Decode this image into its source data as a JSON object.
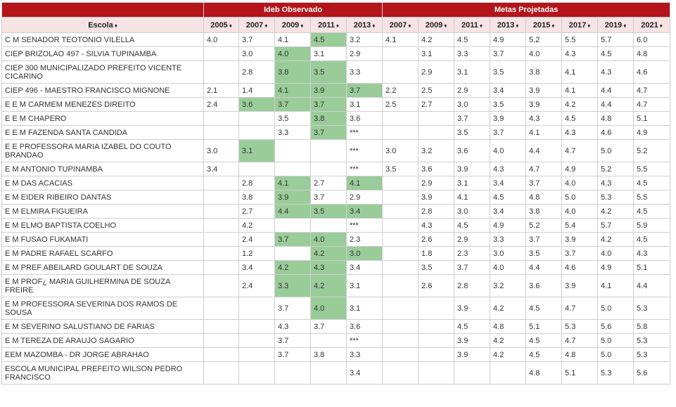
{
  "groups": {
    "blank": "",
    "observed": "Ideb Observado",
    "projected": "Metas Projetadas"
  },
  "columns": {
    "school": "Escola",
    "sort_icon": "♦",
    "observed_years": [
      "2005",
      "2007",
      "2009",
      "2011",
      "2013"
    ],
    "projected_years": [
      "2007",
      "2009",
      "2011",
      "2013",
      "2015",
      "2017",
      "2019",
      "2021"
    ]
  },
  "highlight_color": "#99cc99",
  "rows": [
    {
      "name": "C M SENADOR TEOTONIO VILELLA",
      "obs": [
        "4.0",
        "3.7",
        "4.1",
        "4.5",
        "3.2"
      ],
      "proj": [
        "4.1",
        "4.2",
        "4.5",
        "4.9",
        "5.2",
        "5.5",
        "5.7",
        "6.0"
      ],
      "hl": [
        3
      ]
    },
    {
      "name": "CIEP BRIZOLAO 497 - SILVIA TUPINAMBA",
      "obs": [
        "",
        "3.0",
        "4.0",
        "3.1",
        "2.9"
      ],
      "proj": [
        "",
        "3.1",
        "3.3",
        "3.7",
        "4.0",
        "4.3",
        "4.5",
        "4.8"
      ],
      "hl": [
        2
      ]
    },
    {
      "name": "CIEP 300 MUNICIPALIZADO PREFEITO VICENTE CICARINO",
      "obs": [
        "",
        "2.8",
        "3.8",
        "3.5",
        "3.3"
      ],
      "proj": [
        "",
        "2.9",
        "3.1",
        "3.5",
        "3.8",
        "4.1",
        "4.3",
        "4.6"
      ],
      "hl": [
        2,
        3
      ],
      "tall": true
    },
    {
      "name": "CIEP 496 - MAESTRO FRANCISCO MIGNONE",
      "obs": [
        "2.1",
        "1.4",
        "4.1",
        "3.9",
        "3.7"
      ],
      "proj": [
        "2.2",
        "2.5",
        "2.9",
        "3.4",
        "3.9",
        "4.1",
        "4.4",
        "4.7"
      ],
      "hl": [
        2,
        3,
        4
      ]
    },
    {
      "name": "E E M CARMEM MENEZES DIREITO",
      "obs": [
        "2.4",
        "3.6",
        "3.7",
        "3.7",
        "3.1"
      ],
      "proj": [
        "2.5",
        "2.7",
        "3.0",
        "3.5",
        "3.9",
        "4.2",
        "4.4",
        "4.7"
      ],
      "hl": [
        1,
        2,
        3
      ]
    },
    {
      "name": "E E M CHAPERO",
      "obs": [
        "",
        "",
        "3.5",
        "3.8",
        "3.6"
      ],
      "proj": [
        "",
        "",
        "3.7",
        "3.9",
        "4.3",
        "4.5",
        "4.8",
        "5.1"
      ],
      "hl": [
        3
      ]
    },
    {
      "name": "E E M FAZENDA SANTA CANDIDA",
      "obs": [
        "",
        "",
        "3.3",
        "3.7",
        "***"
      ],
      "proj": [
        "",
        "",
        "3.5",
        "3.7",
        "4.1",
        "4.3",
        "4.6",
        "4.9"
      ],
      "hl": [
        3
      ]
    },
    {
      "name": "E E PROFESSORA MARIA IZABEL DO COUTO BRANDAO",
      "obs": [
        "3.0",
        "3.1",
        "",
        "",
        "***"
      ],
      "proj": [
        "3.0",
        "3.2",
        "3.6",
        "4.0",
        "4.4",
        "4.7",
        "5.0",
        "5.2"
      ],
      "hl": [
        1
      ],
      "tall": true
    },
    {
      "name": "E M ANTONIO TUPINAMBA",
      "obs": [
        "3.4",
        "",
        "",
        "",
        "***"
      ],
      "proj": [
        "3.5",
        "3.6",
        "3.9",
        "4.3",
        "4.7",
        "4.9",
        "5.2",
        "5.5"
      ],
      "hl": []
    },
    {
      "name": "E M DAS ACACIAS",
      "obs": [
        "",
        "2.8",
        "4.1",
        "2.7",
        "4.1"
      ],
      "proj": [
        "",
        "2.9",
        "3.1",
        "3.4",
        "3.7",
        "4.0",
        "4.3",
        "4.5"
      ],
      "hl": [
        2,
        4
      ]
    },
    {
      "name": "E M EIDER RIBEIRO DANTAS",
      "obs": [
        "",
        "3.8",
        "3.9",
        "3.7",
        "2.9"
      ],
      "proj": [
        "",
        "3.9",
        "4.1",
        "4.5",
        "4.8",
        "5.0",
        "5.3",
        "5.5"
      ],
      "hl": [
        2
      ]
    },
    {
      "name": "E M ELMIRA FIGUEIRA",
      "obs": [
        "",
        "2.7",
        "4.4",
        "3.5",
        "3.4"
      ],
      "proj": [
        "",
        "2.8",
        "3.0",
        "3.4",
        "3.8",
        "4.0",
        "4.2",
        "4.5"
      ],
      "hl": [
        2,
        3,
        4
      ]
    },
    {
      "name": "E M ELMO BAPTISTA COELHO",
      "obs": [
        "",
        "4.2",
        "",
        "",
        "***"
      ],
      "proj": [
        "",
        "4.3",
        "4.5",
        "4.9",
        "5.2",
        "5.4",
        "5.7",
        "5.9"
      ],
      "hl": []
    },
    {
      "name": "E M FUSAO FUKAMATI",
      "obs": [
        "",
        "2.4",
        "3.7",
        "4.0",
        "2.3"
      ],
      "proj": [
        "",
        "2.6",
        "2.9",
        "3.3",
        "3.7",
        "3.9",
        "4.2",
        "4.5"
      ],
      "hl": [
        2,
        3
      ]
    },
    {
      "name": "E M PADRE RAFAEL SCARFO",
      "obs": [
        "",
        "1.2",
        "",
        "4.2",
        "3.0"
      ],
      "proj": [
        "",
        "1.8",
        "2.3",
        "3.0",
        "3.5",
        "3.7",
        "4.0",
        "4.3"
      ],
      "hl": [
        3,
        4
      ]
    },
    {
      "name": "E M PREF ABEILARD GOULART DE SOUZA",
      "obs": [
        "",
        "3.4",
        "4.2",
        "4.3",
        "3.4"
      ],
      "proj": [
        "",
        "3.5",
        "3.7",
        "4.0",
        "4.4",
        "4.6",
        "4.9",
        "5.1"
      ],
      "hl": [
        2,
        3
      ]
    },
    {
      "name": "E M PROF¿ MARIA GUILHERMINA DE SOUZA FREIRE",
      "obs": [
        "",
        "2.4",
        "3.3",
        "4.2",
        "3.1"
      ],
      "proj": [
        "",
        "2.6",
        "2.8",
        "3.2",
        "3.6",
        "3.9",
        "4.1",
        "4.4"
      ],
      "hl": [
        2,
        3
      ],
      "tall": true
    },
    {
      "name": "E M PROFESSORA SEVERINA DOS RAMOS DE SOUSA",
      "obs": [
        "",
        "",
        "3.7",
        "4.0",
        "3.1"
      ],
      "proj": [
        "",
        "",
        "3.9",
        "4.2",
        "4.5",
        "4.7",
        "5.0",
        "5.3"
      ],
      "hl": [
        3
      ],
      "tall": true
    },
    {
      "name": "E M SEVERINO SALUSTIANO DE FARIAS",
      "obs": [
        "",
        "",
        "4.3",
        "3.7",
        "3.6"
      ],
      "proj": [
        "",
        "",
        "4.5",
        "4.8",
        "5.1",
        "5.3",
        "5.6",
        "5.8"
      ],
      "hl": []
    },
    {
      "name": "E M TEREZA DE ARAUJO SAGARIO",
      "obs": [
        "",
        "",
        "3.7",
        "",
        "***"
      ],
      "proj": [
        "",
        "",
        "3.9",
        "4.2",
        "4.5",
        "4.7",
        "5.0",
        "5.3"
      ],
      "hl": []
    },
    {
      "name": "EEM MAZOMBA - DR JORGE ABRAHAO",
      "obs": [
        "",
        "",
        "3.7",
        "3.8",
        "3.3"
      ],
      "proj": [
        "",
        "",
        "3.9",
        "4.2",
        "4.5",
        "4.8",
        "5.0",
        "5.3"
      ],
      "hl": []
    },
    {
      "name": "ESCOLA MUNICIPAL PREFEITO WILSON PEDRO FRANCISCO",
      "obs": [
        "",
        "",
        "",
        "",
        "3.4"
      ],
      "proj": [
        "",
        "",
        "",
        "",
        "4.8",
        "5.1",
        "5.3",
        "5.6"
      ],
      "hl": [],
      "tall": true
    }
  ]
}
